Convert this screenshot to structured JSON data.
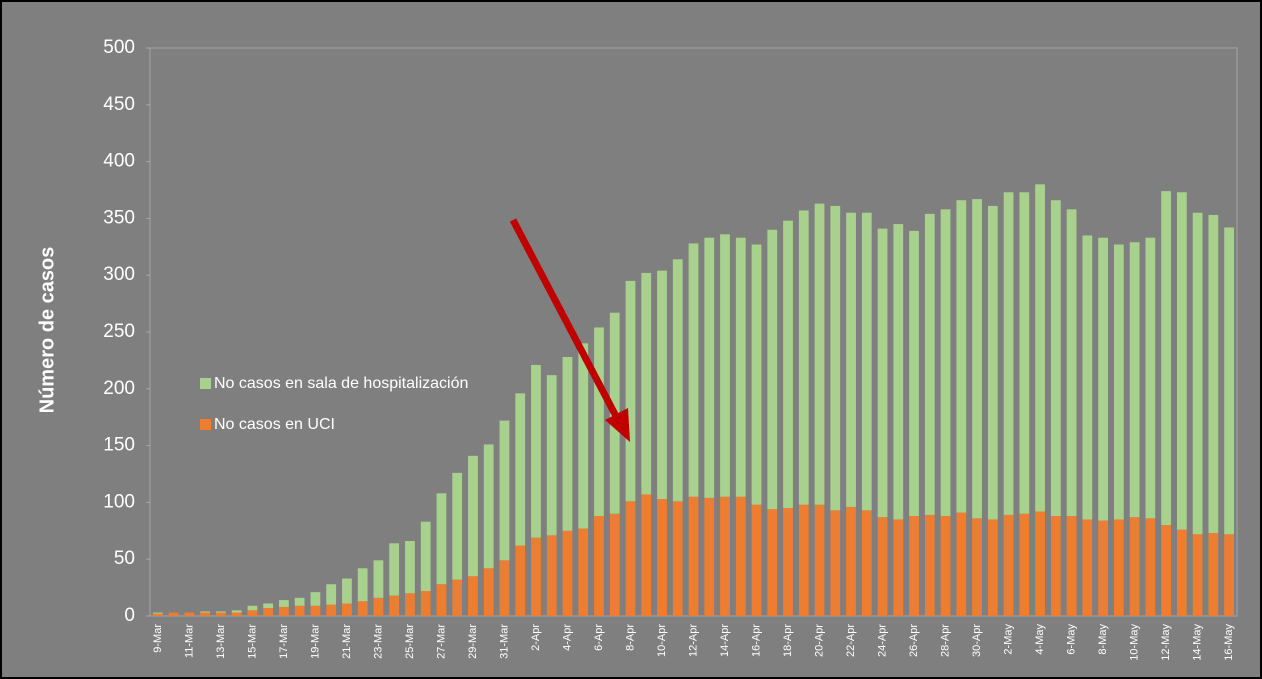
{
  "chart_data": {
    "type": "stacked_bar",
    "ylabel": "Número de casos",
    "categories": [
      "9-Mar",
      null,
      "11-Mar",
      null,
      "13-Mar",
      null,
      "15-Mar",
      null,
      "17-Mar",
      null,
      "19-Mar",
      null,
      "21-Mar",
      null,
      "23-Mar",
      null,
      "25-Mar",
      null,
      "27-Mar",
      null,
      "29-Mar",
      null,
      "31-Mar",
      null,
      "2-Apr",
      null,
      "4-Apr",
      null,
      "6-Apr",
      null,
      "8-Apr",
      null,
      "10-Apr",
      null,
      "12-Apr",
      null,
      "14-Apr",
      null,
      "16-Apr",
      null,
      "18-Apr",
      null,
      "20-Apr",
      null,
      "22-Apr",
      null,
      "24-Apr",
      null,
      "26-Apr",
      null,
      "28-Apr",
      null,
      "30-Apr",
      null,
      "2-May",
      null,
      "4-May",
      null,
      "6-May",
      null,
      "8-May",
      null,
      "10-May",
      null,
      "12-May",
      null,
      "14-May",
      null,
      "16-May"
    ],
    "series": [
      {
        "name": "No casos en UCI",
        "color": "#ed7d31",
        "values": [
          2,
          3,
          3,
          3,
          3,
          3,
          5,
          7,
          8,
          9,
          9,
          10,
          11,
          13,
          16,
          18,
          20,
          22,
          28,
          32,
          35,
          42,
          49,
          62,
          69,
          71,
          75,
          77,
          88,
          90,
          101,
          107,
          103,
          101,
          105,
          104,
          105,
          105,
          98,
          94,
          95,
          98,
          98,
          93,
          96,
          93,
          87,
          85,
          88,
          89,
          88,
          91,
          86,
          85,
          89,
          90,
          92,
          88,
          88,
          85,
          84,
          85,
          87,
          86,
          80,
          76,
          72,
          73,
          72
        ]
      },
      {
        "name": "No casos en sala de hospitalización",
        "color": "#a9d18e",
        "values": [
          1,
          0,
          0,
          1,
          1,
          2,
          4,
          4,
          6,
          7,
          12,
          18,
          22,
          29,
          33,
          46,
          46,
          61,
          80,
          94,
          106,
          109,
          123,
          134,
          152,
          141,
          153,
          163,
          166,
          177,
          194,
          195,
          201,
          213,
          223,
          229,
          231,
          228,
          229,
          246,
          253,
          259,
          265,
          268,
          259,
          262,
          254,
          260,
          251,
          265,
          270,
          275,
          281,
          276,
          284,
          283,
          288,
          278,
          270,
          250,
          249,
          242,
          242,
          247,
          294,
          297,
          283,
          280,
          270
        ]
      }
    ],
    "ylim": [
      0,
      500
    ],
    "yticks": [
      0,
      50,
      100,
      150,
      200,
      250,
      300,
      350,
      400,
      450,
      500
    ]
  }
}
